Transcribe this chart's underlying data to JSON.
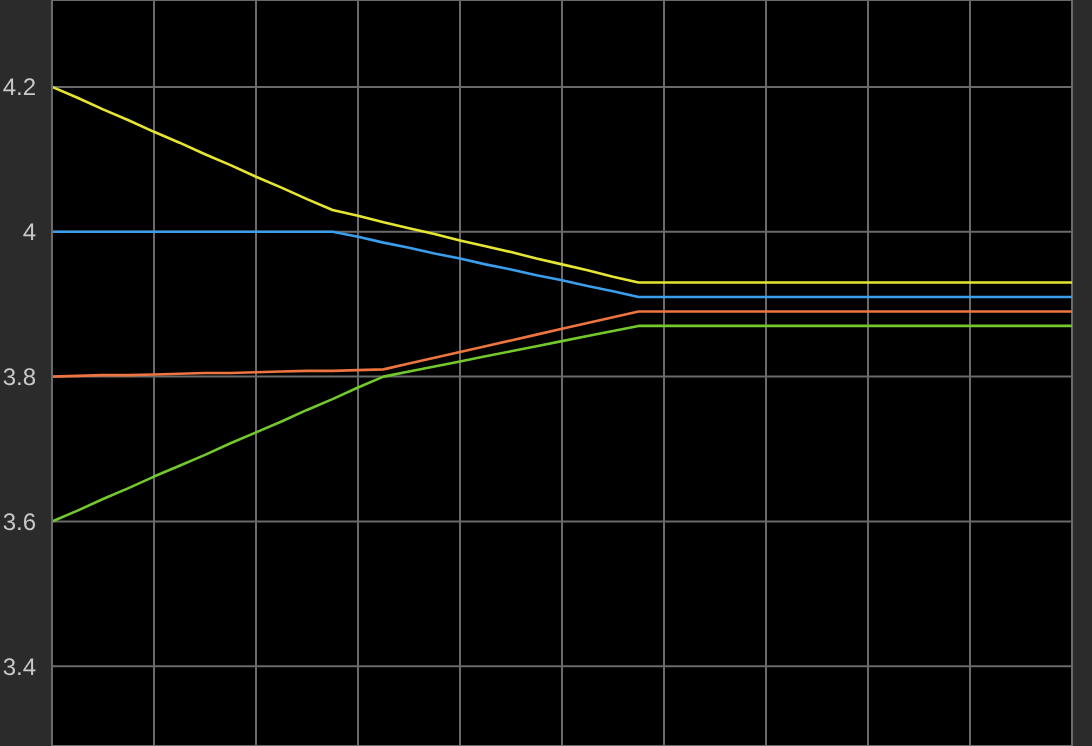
{
  "chart_data": {
    "type": "line",
    "categories": [
      null,
      null,
      null,
      null,
      null,
      null,
      null,
      null,
      null,
      null,
      null,
      null,
      null,
      null,
      null,
      null,
      null,
      null,
      null,
      null,
      null,
      null,
      null,
      null,
      null,
      null,
      null,
      null,
      null,
      null,
      null,
      null,
      null,
      null,
      null,
      null,
      null,
      null,
      null,
      null,
      null
    ],
    "ylim": [
      3.29,
      4.32
    ],
    "yticks": [
      3.4,
      3.6,
      3.8,
      4,
      4.2
    ],
    "tick_labels": "y",
    "grid": true,
    "marker": "none",
    "line_style": "solid",
    "series": [
      {
        "color": "#e6e632",
        "values": [
          4.2,
          4.185,
          4.169,
          4.154,
          4.138,
          4.123,
          4.107,
          4.092,
          4.076,
          4.061,
          4.045,
          4.03,
          4.022,
          4.013,
          4.005,
          3.997,
          3.988,
          3.98,
          3.972,
          3.963,
          3.955,
          3.947,
          3.938,
          3.93,
          3.93,
          3.93,
          3.93,
          3.93,
          3.93,
          3.93,
          3.93,
          3.93,
          3.93,
          3.93,
          3.93,
          3.93,
          3.93,
          3.93,
          3.93,
          3.93,
          3.93
        ]
      },
      {
        "color": "#3a9eec",
        "values": [
          4.0,
          4.0,
          4.0,
          4.0,
          4.0,
          4.0,
          4.0,
          4.0,
          4.0,
          4.0,
          4.0,
          4.0,
          3.993,
          3.985,
          3.978,
          3.97,
          3.963,
          3.955,
          3.948,
          3.94,
          3.933,
          3.925,
          3.918,
          3.91,
          3.91,
          3.91,
          3.91,
          3.91,
          3.91,
          3.91,
          3.91,
          3.91,
          3.91,
          3.91,
          3.91,
          3.91,
          3.91,
          3.91,
          3.91,
          3.91,
          3.91
        ]
      },
      {
        "color": "#ee7440",
        "values": [
          3.8,
          3.801,
          3.802,
          3.802,
          3.803,
          3.804,
          3.805,
          3.805,
          3.806,
          3.807,
          3.808,
          3.808,
          3.809,
          3.81,
          3.818,
          3.826,
          3.834,
          3.842,
          3.85,
          3.858,
          3.866,
          3.874,
          3.882,
          3.89,
          3.89,
          3.89,
          3.89,
          3.89,
          3.89,
          3.89,
          3.89,
          3.89,
          3.89,
          3.89,
          3.89,
          3.89,
          3.89,
          3.89,
          3.89,
          3.89,
          3.89
        ]
      },
      {
        "color": "#72c82c",
        "values": [
          3.6,
          3.615,
          3.631,
          3.646,
          3.662,
          3.677,
          3.692,
          3.708,
          3.723,
          3.738,
          3.754,
          3.769,
          3.785,
          3.8,
          3.807,
          3.814,
          3.821,
          3.828,
          3.835,
          3.842,
          3.849,
          3.856,
          3.863,
          3.87,
          3.87,
          3.87,
          3.87,
          3.87,
          3.87,
          3.87,
          3.87,
          3.87,
          3.87,
          3.87,
          3.87,
          3.87,
          3.87,
          3.87,
          3.87,
          3.87,
          3.87
        ]
      }
    ]
  }
}
